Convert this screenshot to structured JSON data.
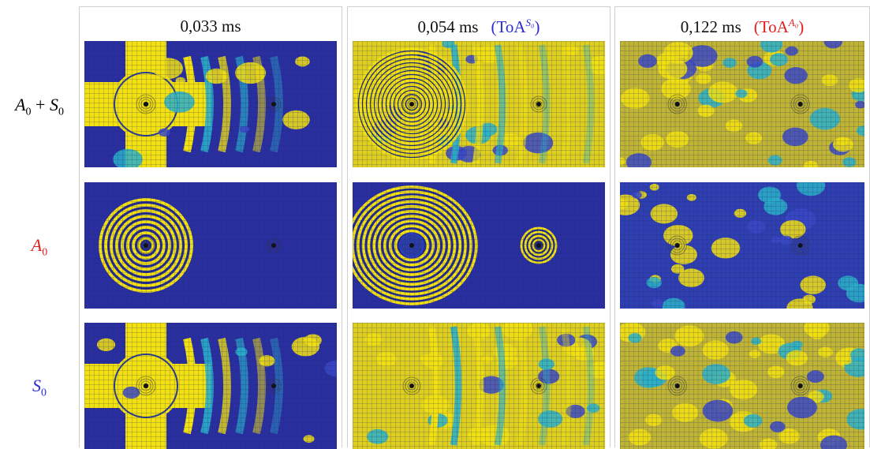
{
  "columns": [
    {
      "time": "0,033 ms",
      "tag_text": "",
      "tag_sup": "",
      "tag_color": ""
    },
    {
      "time": "0,054 ms",
      "tag_text": "(ToA",
      "tag_sup": "S₀",
      "tag_close": ")",
      "tag_color": "#2b2bd6"
    },
    {
      "time": "0,122 ms",
      "tag_text": "(ToA",
      "tag_sup": "A₀",
      "tag_close": ")",
      "tag_color": "#e02020"
    }
  ],
  "rows": [
    {
      "label": "A",
      "sub": "0",
      "plus": "+",
      "label2": "S",
      "sub2": "0",
      "color": "#000000"
    },
    {
      "label": "A",
      "sub": "0",
      "color": "#e02020"
    },
    {
      "label": "S",
      "sub": "0",
      "color": "#2b2bd6"
    }
  ],
  "colors": {
    "background_field": "#2a2fa0",
    "high_amplitude": "#f2e10f",
    "mid_amplitude": "#2ab0c8",
    "low_amplitude": "#3a48c6"
  },
  "colormap": "parula"
}
